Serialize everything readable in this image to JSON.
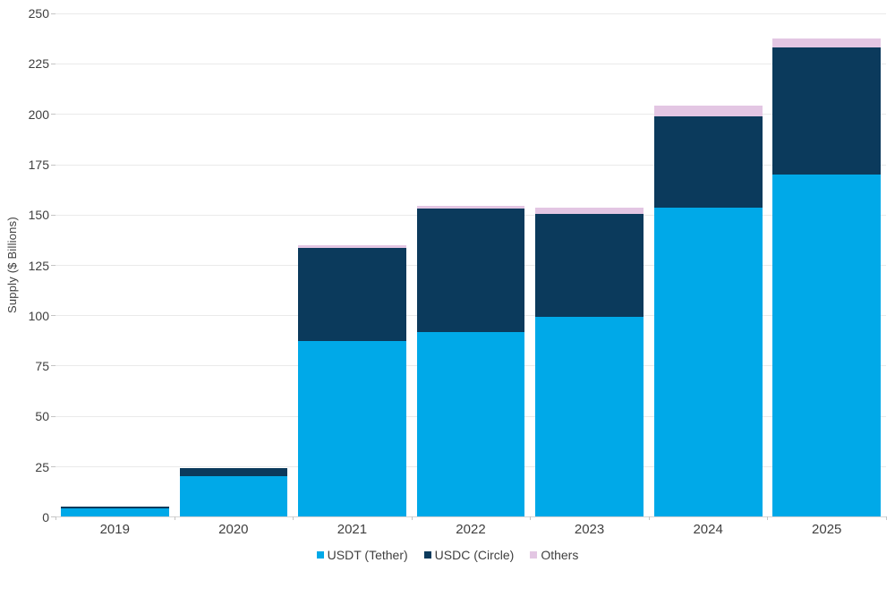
{
  "chart_data": {
    "type": "bar",
    "stacked": true,
    "categories": [
      "2019",
      "2020",
      "2021",
      "2022",
      "2023",
      "2024",
      "2025"
    ],
    "series": [
      {
        "name": "USDT (Tether)",
        "key": "usdt",
        "color": "#00A9E8",
        "values": [
          4,
          20,
          87,
          91.5,
          99,
          153.5,
          170
        ]
      },
      {
        "name": "USDC (Circle)",
        "key": "usdc",
        "color": "#0B3A5C",
        "values": [
          1,
          4,
          46.5,
          61.5,
          51.5,
          45.5,
          63
        ]
      },
      {
        "name": "Others",
        "key": "others",
        "color": "#E3C6E3",
        "values": [
          0,
          0,
          1.5,
          1.5,
          3,
          5,
          4.5
        ]
      }
    ],
    "totals": [
      5,
      24,
      135,
      154.5,
      153.5,
      204,
      237.5
    ],
    "title": "",
    "xlabel": "",
    "ylabel": "Supply ($ Billions)",
    "ylim": [
      0,
      250
    ],
    "yticks": [
      0,
      25,
      50,
      75,
      100,
      125,
      150,
      175,
      200,
      225,
      250
    ],
    "grid": true,
    "legend_position": "bottom-center"
  },
  "colors": {
    "background": "#FFFFFF",
    "gridline": "#EAEAEA",
    "axis_line": "#D5D5D5",
    "tick_mark": "#C4C4C4",
    "label_text": "#3F3F3F"
  },
  "legend": {
    "items": [
      "USDT (Tether)",
      "USDC (Circle)",
      "Others"
    ]
  }
}
